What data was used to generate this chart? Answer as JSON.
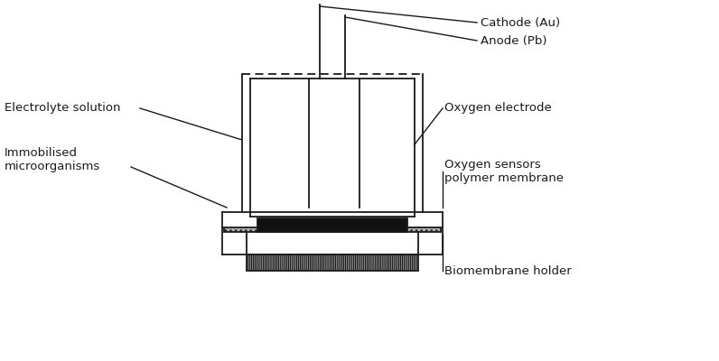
{
  "bg_color": "#ffffff",
  "line_color": "#1a1a1a",
  "dark_fill": "#111111",
  "labels": {
    "cathode": "Cathode (Au)",
    "anode": "Anode (Pb)",
    "oxygen_electrode": "Oxygen electrode",
    "electrolyte": "Electrolyte solution",
    "immobilised": "Immobilised\nmicroorganisms",
    "oxygen_sensor": "Oxygen sensors\npolymer membrane",
    "biomembrane": "Biomembrane holder"
  },
  "font_size": 9.5
}
